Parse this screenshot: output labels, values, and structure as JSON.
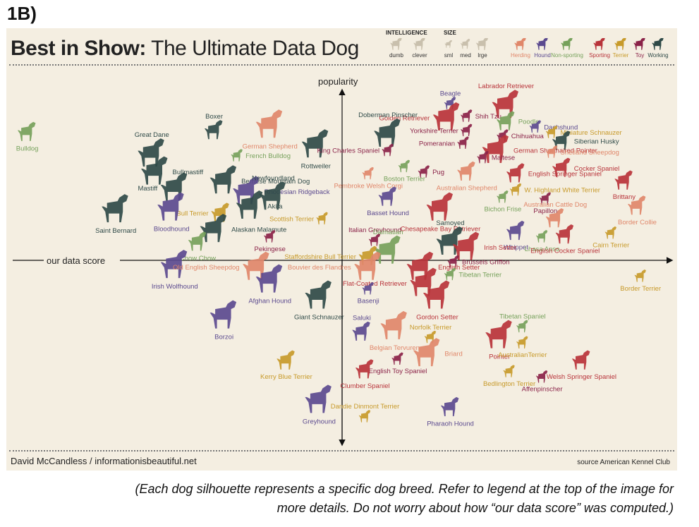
{
  "figure_label": "1B)",
  "header": {
    "title_bold": "Best in Show:",
    "title_rest": " The Ultimate Data Dog",
    "legend": {
      "intelligence_heading": "INTELLIGENCE",
      "intelligence_items": [
        "dumb",
        "clever"
      ],
      "size_heading": "SIZE",
      "size_items": [
        "sml",
        "med",
        "lrge"
      ],
      "categories": [
        {
          "name": "Herding",
          "color": "#e0876a"
        },
        {
          "name": "Hound",
          "color": "#5b4a8f"
        },
        {
          "name": "Non-sporting",
          "color": "#76a15b"
        },
        {
          "name": "Sporting",
          "color": "#b8333a"
        },
        {
          "name": "Terrier",
          "color": "#c79a2a"
        },
        {
          "name": "Toy",
          "color": "#8a2248"
        },
        {
          "name": "Working",
          "color": "#2f4a48"
        }
      ]
    }
  },
  "footer": {
    "credit": "David McCandless  /  informationisbeautiful.net",
    "source": "source American Kennel Club"
  },
  "caption": {
    "line1": "(Each dog silhouette represents a specific dog breed. Refer to legend at the top of the image for",
    "line2": "more details. Do not worry about how “our data score” was computed.)"
  },
  "chart_data": {
    "type": "scatter",
    "xlabel": "our data score",
    "ylabel": "popularity",
    "grid": false,
    "quadrant_axes": true,
    "xlim": [
      -1,
      1
    ],
    "ylim": [
      -1,
      1
    ],
    "points": [
      {
        "name": "Bulldog",
        "group": "Non-sporting",
        "x": -0.96,
        "y": 0.71,
        "size": "med",
        "label_pos": "below"
      },
      {
        "name": "Boxer",
        "group": "Working",
        "x": -0.39,
        "y": 0.72,
        "size": "med",
        "label_pos": "above"
      },
      {
        "name": "German Shepherd",
        "group": "Herding",
        "x": -0.22,
        "y": 0.75,
        "size": "lrge",
        "label_pos": "below"
      },
      {
        "name": "Great Dane",
        "group": "Working",
        "x": -0.58,
        "y": 0.59,
        "size": "lrge",
        "label_pos": "above"
      },
      {
        "name": "French Bulldog",
        "group": "Non-sporting",
        "x": -0.32,
        "y": 0.58,
        "size": "sml",
        "label_pos": "right"
      },
      {
        "name": "Rottweiler",
        "group": "Working",
        "x": -0.08,
        "y": 0.64,
        "size": "lrge",
        "label_pos": "below"
      },
      {
        "name": "Bullmastiff",
        "group": "Working",
        "x": -0.57,
        "y": 0.49,
        "size": "lrge",
        "label_pos": "right"
      },
      {
        "name": "Bernese Mountain Dog",
        "group": "Working",
        "x": -0.36,
        "y": 0.44,
        "size": "lrge",
        "label_pos": "right"
      },
      {
        "name": "Mastiff",
        "group": "Working",
        "x": -0.51,
        "y": 0.4,
        "size": "lrge",
        "label_pos": "left"
      },
      {
        "name": "Rhodesian Ridgeback",
        "group": "Hound",
        "x": -0.29,
        "y": 0.38,
        "size": "lrge",
        "label_pos": "right"
      },
      {
        "name": "Newfoundland",
        "group": "Working",
        "x": -0.21,
        "y": 0.35,
        "size": "lrge",
        "label_pos": "above"
      },
      {
        "name": "Bull Terrier",
        "group": "Terrier",
        "x": -0.37,
        "y": 0.26,
        "size": "med",
        "label_pos": "left"
      },
      {
        "name": "Saint Bernard",
        "group": "Working",
        "x": -0.69,
        "y": 0.28,
        "size": "lrge",
        "label_pos": "below"
      },
      {
        "name": "Bloodhound",
        "group": "Hound",
        "x": -0.52,
        "y": 0.29,
        "size": "lrge",
        "label_pos": "below"
      },
      {
        "name": "Akita",
        "group": "Working",
        "x": -0.28,
        "y": 0.3,
        "size": "lrge",
        "label_pos": "right"
      },
      {
        "name": "Alaskan Malamute",
        "group": "Working",
        "x": -0.39,
        "y": 0.17,
        "size": "lrge",
        "label_pos": "right"
      },
      {
        "name": "Scottish Terrier",
        "group": "Terrier",
        "x": -0.06,
        "y": 0.23,
        "size": "sml",
        "label_pos": "left"
      },
      {
        "name": "Chow Chow",
        "group": "Non-sporting",
        "x": -0.44,
        "y": 0.1,
        "size": "med",
        "label_pos": "below"
      },
      {
        "name": "Pekingese",
        "group": "Toy",
        "x": -0.22,
        "y": 0.13,
        "size": "sml",
        "label_pos": "below"
      },
      {
        "name": "Irish Wolfhound",
        "group": "Hound",
        "x": -0.51,
        "y": -0.03,
        "size": "lrge",
        "label_pos": "below"
      },
      {
        "name": "Old English Sheepdog",
        "group": "Herding",
        "x": -0.26,
        "y": -0.04,
        "size": "lrge",
        "label_pos": "left"
      },
      {
        "name": "Afghan Hound",
        "group": "Hound",
        "x": -0.22,
        "y": -0.11,
        "size": "lrge",
        "label_pos": "below"
      },
      {
        "name": "Giant Schnauzer",
        "group": "Working",
        "x": -0.07,
        "y": -0.2,
        "size": "lrge",
        "label_pos": "below"
      },
      {
        "name": "Borzoi",
        "group": "Hound",
        "x": -0.36,
        "y": -0.31,
        "size": "lrge",
        "label_pos": "below"
      },
      {
        "name": "Kerry Blue Terrier",
        "group": "Terrier",
        "x": -0.17,
        "y": -0.56,
        "size": "med",
        "label_pos": "below"
      },
      {
        "name": "Greyhound",
        "group": "Hound",
        "x": -0.07,
        "y": -0.78,
        "size": "lrge",
        "label_pos": "below"
      },
      {
        "name": "Beagle",
        "group": "Hound",
        "x": 0.33,
        "y": 0.87,
        "size": "sml",
        "label_pos": "above"
      },
      {
        "name": "Labrador Retriever",
        "group": "Sporting",
        "x": 0.5,
        "y": 0.86,
        "size": "lrge",
        "label_pos": "above"
      },
      {
        "name": "Golden Retriever",
        "group": "Sporting",
        "x": 0.32,
        "y": 0.79,
        "size": "lrge",
        "label_pos": "left"
      },
      {
        "name": "Shih Tzu",
        "group": "Toy",
        "x": 0.38,
        "y": 0.8,
        "size": "sml",
        "label_pos": "right"
      },
      {
        "name": "Poodle",
        "group": "Non-sporting",
        "x": 0.5,
        "y": 0.77,
        "size": "med",
        "label_pos": "right"
      },
      {
        "name": "Doberman Pinscher",
        "group": "Working",
        "x": 0.14,
        "y": 0.7,
        "size": "lrge",
        "label_pos": "above"
      },
      {
        "name": "Dachshund",
        "group": "Hound",
        "x": 0.59,
        "y": 0.74,
        "size": "sml",
        "label_pos": "right"
      },
      {
        "name": "Yorkshire Terrier",
        "group": "Toy",
        "x": 0.38,
        "y": 0.72,
        "size": "sml",
        "label_pos": "left"
      },
      {
        "name": "Chihuahua",
        "group": "Toy",
        "x": 0.49,
        "y": 0.69,
        "size": "sml",
        "label_pos": "right"
      },
      {
        "name": "Miniature Schnauzer",
        "group": "Terrier",
        "x": 0.64,
        "y": 0.71,
        "size": "sml",
        "label_pos": "right"
      },
      {
        "name": "Siberian Husky",
        "group": "Working",
        "x": 0.67,
        "y": 0.66,
        "size": "med",
        "label_pos": "right"
      },
      {
        "name": "King Charles Spaniel",
        "group": "Toy",
        "x": 0.14,
        "y": 0.61,
        "size": "sml",
        "label_pos": "left"
      },
      {
        "name": "Pomeranian",
        "group": "Toy",
        "x": 0.37,
        "y": 0.65,
        "size": "sml",
        "label_pos": "left"
      },
      {
        "name": "German Shorthaired Pointer",
        "group": "Sporting",
        "x": 0.47,
        "y": 0.61,
        "size": "lrge",
        "label_pos": "right"
      },
      {
        "name": "Shetland Sheepdog",
        "group": "Herding",
        "x": 0.64,
        "y": 0.6,
        "size": "sml",
        "label_pos": "right"
      },
      {
        "name": "Maltese",
        "group": "Toy",
        "x": 0.43,
        "y": 0.57,
        "size": "sml",
        "label_pos": "right"
      },
      {
        "name": "Boston Terrier",
        "group": "Non-sporting",
        "x": 0.19,
        "y": 0.52,
        "size": "sml",
        "label_pos": "below"
      },
      {
        "name": "Pug",
        "group": "Toy",
        "x": 0.25,
        "y": 0.49,
        "size": "sml",
        "label_pos": "right"
      },
      {
        "name": "Pembroke Welsh Corgi",
        "group": "Herding",
        "x": 0.08,
        "y": 0.48,
        "size": "sml",
        "label_pos": "below"
      },
      {
        "name": "Australian Shepherd",
        "group": "Herding",
        "x": 0.38,
        "y": 0.49,
        "size": "med",
        "label_pos": "below"
      },
      {
        "name": "English Springer Spaniel",
        "group": "Sporting",
        "x": 0.53,
        "y": 0.48,
        "size": "med",
        "label_pos": "right"
      },
      {
        "name": "Cocker Spaniel",
        "group": "Sporting",
        "x": 0.67,
        "y": 0.51,
        "size": "med",
        "label_pos": "right"
      },
      {
        "name": "W. Highland White Terrier",
        "group": "Terrier",
        "x": 0.53,
        "y": 0.39,
        "size": "sml",
        "label_pos": "right"
      },
      {
        "name": "Brittany",
        "group": "Sporting",
        "x": 0.86,
        "y": 0.44,
        "size": "med",
        "label_pos": "below"
      },
      {
        "name": "Basset Hound",
        "group": "Hound",
        "x": 0.14,
        "y": 0.35,
        "size": "med",
        "label_pos": "below"
      },
      {
        "name": "Bichon Frise",
        "group": "Non-sporting",
        "x": 0.49,
        "y": 0.35,
        "size": "sml",
        "label_pos": "below"
      },
      {
        "name": "Papillon",
        "group": "Toy",
        "x": 0.62,
        "y": 0.34,
        "size": "sml",
        "label_pos": "below"
      },
      {
        "name": "Chesapeake Bay Retriever",
        "group": "Sporting",
        "x": 0.3,
        "y": 0.29,
        "size": "lrge",
        "label_pos": "below"
      },
      {
        "name": "Border Collie",
        "group": "Herding",
        "x": 0.9,
        "y": 0.3,
        "size": "med",
        "label_pos": "below"
      },
      {
        "name": "Australian Cattle Dog",
        "group": "Herding",
        "x": 0.65,
        "y": 0.23,
        "size": "med",
        "label_pos": "above"
      },
      {
        "name": "Cairn Terrier",
        "group": "Terrier",
        "x": 0.82,
        "y": 0.15,
        "size": "sml",
        "label_pos": "below"
      },
      {
        "name": "Italian Greyhound",
        "group": "Toy",
        "x": 0.1,
        "y": 0.11,
        "size": "sml",
        "label_pos": "above"
      },
      {
        "name": "Samoyed",
        "group": "Working",
        "x": 0.33,
        "y": 0.1,
        "size": "lrge",
        "label_pos": "above"
      },
      {
        "name": "Whippet",
        "group": "Hound",
        "x": 0.53,
        "y": 0.16,
        "size": "med",
        "label_pos": "below"
      },
      {
        "name": "Lhasa Apso",
        "group": "Non-sporting",
        "x": 0.61,
        "y": 0.13,
        "size": "sml",
        "label_pos": "below"
      },
      {
        "name": "English Cocker Spaniel",
        "group": "Sporting",
        "x": 0.68,
        "y": 0.14,
        "size": "med",
        "label_pos": "below"
      },
      {
        "name": "Dalmatian",
        "group": "Non-sporting",
        "x": 0.14,
        "y": 0.05,
        "size": "lrge",
        "label_pos": "above"
      },
      {
        "name": "Irish Setter",
        "group": "Sporting",
        "x": 0.38,
        "y": 0.07,
        "size": "lrge",
        "label_pos": "right"
      },
      {
        "name": "Staffordshire Bull Terrier",
        "group": "Terrier",
        "x": 0.08,
        "y": 0.02,
        "size": "med",
        "label_pos": "left"
      },
      {
        "name": "Brussels Griffon",
        "group": "Toy",
        "x": 0.34,
        "y": -0.01,
        "size": "sml",
        "label_pos": "right"
      },
      {
        "name": "Bouvier des Flandres",
        "group": "Herding",
        "x": 0.08,
        "y": -0.04,
        "size": "lrge",
        "label_pos": "left"
      },
      {
        "name": "English Setter",
        "group": "Sporting",
        "x": 0.24,
        "y": -0.04,
        "size": "lrge",
        "label_pos": "right"
      },
      {
        "name": "Tibetan Terrier",
        "group": "Non-sporting",
        "x": 0.33,
        "y": -0.08,
        "size": "sml",
        "label_pos": "right"
      },
      {
        "name": "Border Terrier",
        "group": "Terrier",
        "x": 0.91,
        "y": -0.09,
        "size": "sml",
        "label_pos": "below"
      },
      {
        "name": "Flat-Coated Retriever",
        "group": "Sporting",
        "x": 0.25,
        "y": -0.13,
        "size": "lrge",
        "label_pos": "left"
      },
      {
        "name": "Basenji",
        "group": "Hound",
        "x": 0.08,
        "y": -0.16,
        "size": "sml",
        "label_pos": "below"
      },
      {
        "name": "Gordon Setter",
        "group": "Sporting",
        "x": 0.29,
        "y": -0.2,
        "size": "lrge",
        "label_pos": "below"
      },
      {
        "name": "Saluki",
        "group": "Hound",
        "x": 0.06,
        "y": -0.4,
        "size": "med",
        "label_pos": "above"
      },
      {
        "name": "Belgian Tervuren",
        "group": "Herding",
        "x": 0.16,
        "y": -0.37,
        "size": "lrge",
        "label_pos": "below"
      },
      {
        "name": "Tibetan Spaniel",
        "group": "Non-sporting",
        "x": 0.55,
        "y": -0.37,
        "size": "sml",
        "label_pos": "above"
      },
      {
        "name": "Norfolk Terrier",
        "group": "Terrier",
        "x": 0.27,
        "y": -0.43,
        "size": "sml",
        "label_pos": "above"
      },
      {
        "name": "Pointer",
        "group": "Sporting",
        "x": 0.48,
        "y": -0.42,
        "size": "lrge",
        "label_pos": "below"
      },
      {
        "name": "Briard",
        "group": "Herding",
        "x": 0.26,
        "y": -0.52,
        "size": "lrge",
        "label_pos": "right"
      },
      {
        "name": "AustralianTerrier",
        "group": "Terrier",
        "x": 0.55,
        "y": -0.46,
        "size": "sml",
        "label_pos": "below"
      },
      {
        "name": "Welsh Springer Spaniel",
        "group": "Sporting",
        "x": 0.73,
        "y": -0.56,
        "size": "med",
        "label_pos": "below"
      },
      {
        "name": "English Toy Spaniel",
        "group": "Toy",
        "x": 0.17,
        "y": -0.55,
        "size": "sml",
        "label_pos": "below"
      },
      {
        "name": "Clumber Spaniel",
        "group": "Sporting",
        "x": 0.07,
        "y": -0.61,
        "size": "med",
        "label_pos": "below"
      },
      {
        "name": "Bedlington Terrier",
        "group": "Terrier",
        "x": 0.51,
        "y": -0.62,
        "size": "sml",
        "label_pos": "below"
      },
      {
        "name": "Affenpinscher",
        "group": "Toy",
        "x": 0.61,
        "y": -0.65,
        "size": "sml",
        "label_pos": "below"
      },
      {
        "name": "Dandie Dinmont Terrier",
        "group": "Terrier",
        "x": 0.07,
        "y": -0.87,
        "size": "sml",
        "label_pos": "above"
      },
      {
        "name": "Pharaoh Hound",
        "group": "Hound",
        "x": 0.33,
        "y": -0.82,
        "size": "med",
        "label_pos": "below"
      }
    ]
  }
}
